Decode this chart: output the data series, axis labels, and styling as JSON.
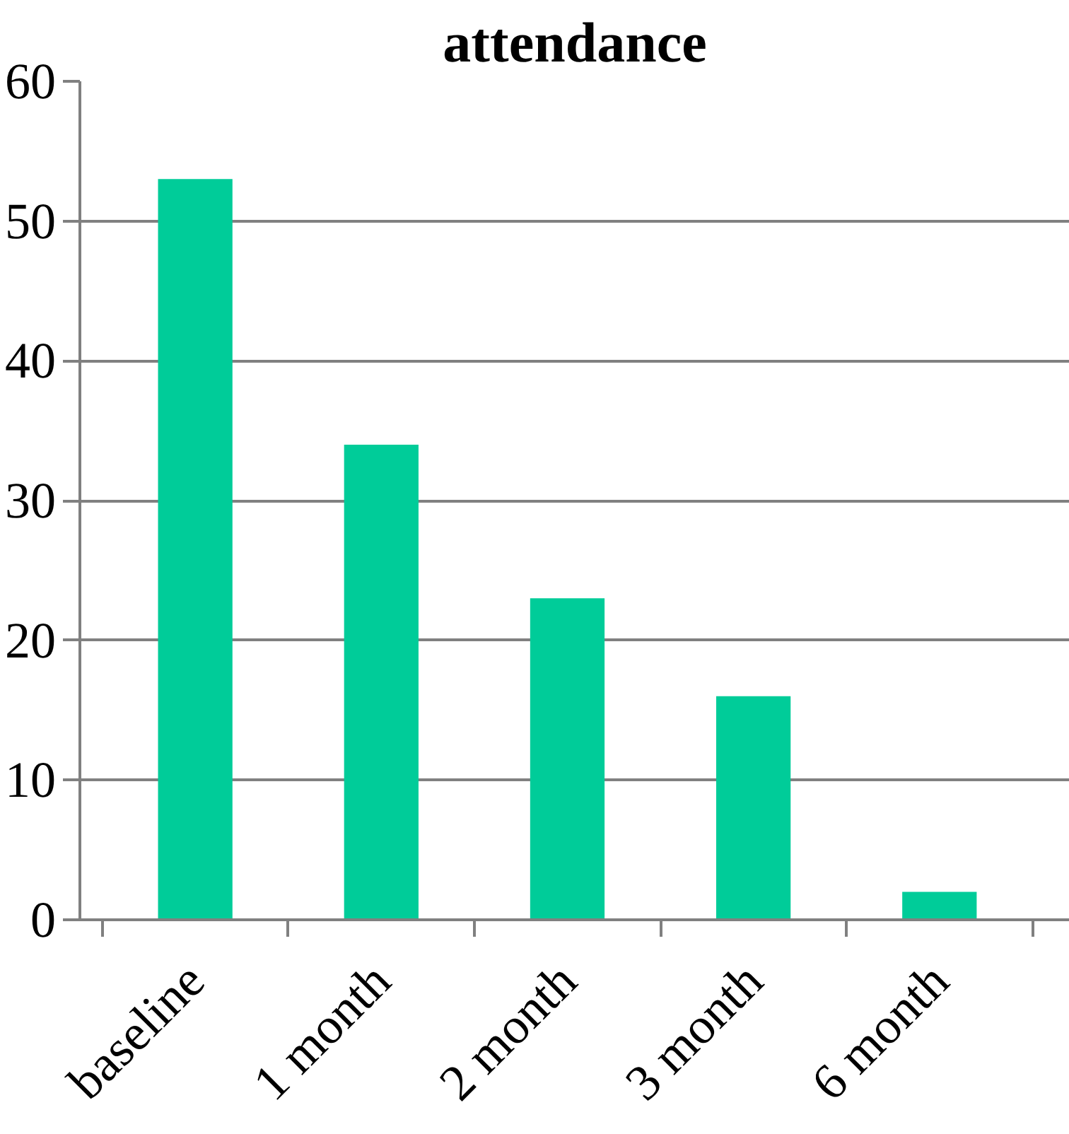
{
  "chart_data": {
    "type": "bar",
    "title": "attendance",
    "categories": [
      "baseline",
      "1 month",
      "2 month",
      "3 month",
      "6 month"
    ],
    "values": [
      53,
      34,
      23,
      16,
      2
    ],
    "color": "#00cc99",
    "ylim": [
      0,
      60
    ],
    "yticks": [
      0,
      10,
      20,
      30,
      40,
      50,
      60
    ],
    "grid": "y"
  }
}
